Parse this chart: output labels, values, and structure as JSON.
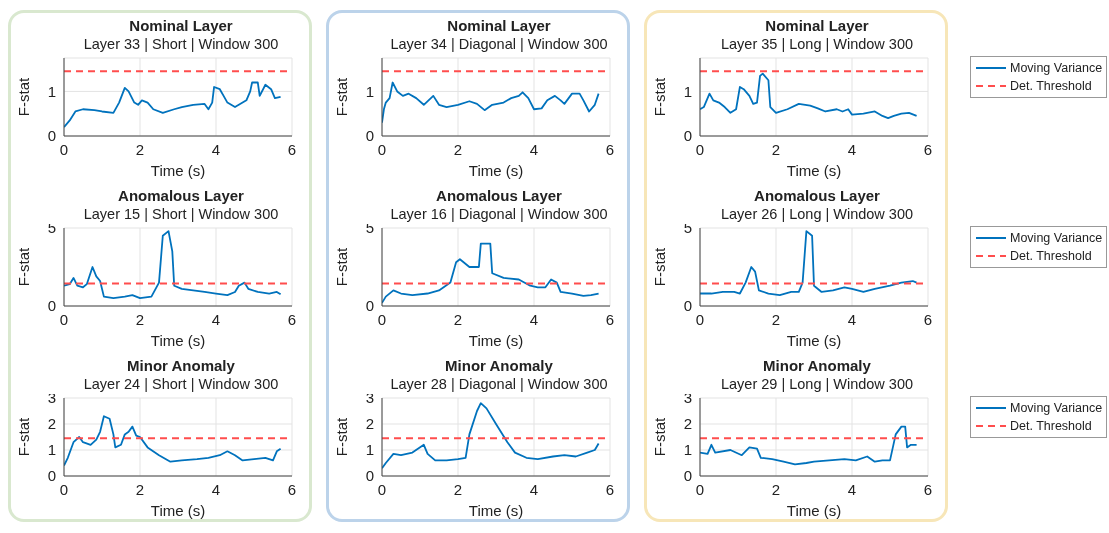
{
  "chart_data": [
    {
      "type": "line",
      "title": "Nominal Layer",
      "subtitle": "Layer 33 | Short | Window 300",
      "xlabel": "Time (s)",
      "ylabel": "F-stat",
      "xlim": [
        0,
        6
      ],
      "xticks": [
        0,
        2,
        4,
        6
      ],
      "ylim": [
        0,
        1.75
      ],
      "yticks": [
        0,
        1
      ],
      "grid": true,
      "legend": false,
      "series": [
        {
          "color": "#0072bd",
          "x": [
            0,
            0.15,
            0.3,
            0.5,
            0.8,
            1.0,
            1.3,
            1.45,
            1.6,
            1.7,
            1.85,
            1.95,
            2.05,
            2.2,
            2.35,
            2.6,
            2.9,
            3.1,
            3.4,
            3.7,
            3.8,
            3.9,
            3.95,
            4.1,
            4.2,
            4.3,
            4.5,
            4.7,
            4.8,
            4.9,
            4.95,
            5.1,
            5.15,
            5.3,
            5.45,
            5.55,
            5.7
          ],
          "values": [
            0.2,
            0.35,
            0.55,
            0.6,
            0.58,
            0.55,
            0.52,
            0.75,
            1.08,
            1.0,
            0.75,
            0.7,
            0.8,
            0.75,
            0.6,
            0.52,
            0.6,
            0.65,
            0.7,
            0.72,
            0.6,
            0.75,
            1.1,
            1.05,
            0.9,
            0.75,
            0.65,
            0.75,
            0.8,
            1.0,
            1.2,
            1.2,
            0.9,
            1.15,
            1.05,
            0.85,
            0.88
          ]
        },
        {
          "color": "#ff4d4d",
          "line_style": "dashed",
          "x": [
            0,
            6
          ],
          "values": [
            1.45,
            1.45
          ]
        }
      ]
    },
    {
      "type": "line",
      "title": "Nominal Layer",
      "subtitle": "Layer 34 | Diagonal | Window 300",
      "xlabel": "Time (s)",
      "ylabel": "F-stat",
      "xlim": [
        0,
        6
      ],
      "xticks": [
        0,
        2,
        4,
        6
      ],
      "ylim": [
        0,
        1.75
      ],
      "yticks": [
        0,
        1
      ],
      "grid": true,
      "legend": false,
      "series": [
        {
          "color": "#0072bd",
          "x": [
            0,
            0.05,
            0.1,
            0.2,
            0.28,
            0.4,
            0.55,
            0.7,
            0.9,
            1.1,
            1.35,
            1.5,
            1.7,
            2.0,
            2.3,
            2.5,
            2.7,
            2.9,
            3.2,
            3.4,
            3.6,
            3.7,
            3.85,
            4.0,
            4.2,
            4.35,
            4.55,
            4.7,
            4.8,
            5.0,
            5.2,
            5.3,
            5.45,
            5.6,
            5.7
          ],
          "values": [
            0.3,
            0.6,
            0.75,
            0.85,
            1.2,
            1.0,
            0.9,
            0.95,
            0.85,
            0.7,
            0.9,
            0.7,
            0.65,
            0.7,
            0.78,
            0.72,
            0.58,
            0.7,
            0.75,
            0.85,
            0.9,
            0.98,
            0.85,
            0.6,
            0.62,
            0.8,
            0.9,
            0.8,
            0.72,
            0.95,
            0.95,
            0.8,
            0.55,
            0.7,
            0.95
          ]
        },
        {
          "color": "#ff4d4d",
          "line_style": "dashed",
          "x": [
            0,
            6
          ],
          "values": [
            1.45,
            1.45
          ]
        }
      ]
    },
    {
      "type": "line",
      "title": "Nominal Layer",
      "subtitle": "Layer 35 | Long | Window 300",
      "xlabel": "Time (s)",
      "ylabel": "F-stat",
      "xlim": [
        0,
        6
      ],
      "xticks": [
        0,
        2,
        4,
        6
      ],
      "ylim": [
        0,
        1.75
      ],
      "yticks": [
        0,
        1
      ],
      "grid": true,
      "legend": "right",
      "series": [
        {
          "name": "Moving Variance",
          "color": "#0072bd",
          "x": [
            0,
            0.1,
            0.25,
            0.35,
            0.5,
            0.65,
            0.8,
            0.95,
            1.05,
            1.15,
            1.3,
            1.4,
            1.5,
            1.58,
            1.65,
            1.8,
            1.85,
            2.0,
            2.3,
            2.6,
            2.9,
            3.1,
            3.3,
            3.6,
            3.75,
            3.9,
            4.0,
            4.3,
            4.6,
            4.8,
            4.95,
            5.1,
            5.3,
            5.5,
            5.7
          ],
          "values": [
            0.6,
            0.65,
            0.95,
            0.8,
            0.75,
            0.65,
            0.52,
            0.6,
            1.1,
            1.05,
            0.9,
            0.72,
            0.75,
            1.35,
            1.4,
            1.25,
            0.65,
            0.52,
            0.6,
            0.72,
            0.68,
            0.62,
            0.55,
            0.6,
            0.55,
            0.6,
            0.48,
            0.5,
            0.55,
            0.45,
            0.4,
            0.45,
            0.5,
            0.52,
            0.45
          ]
        },
        {
          "name": "Det. Threshold",
          "color": "#ff4d4d",
          "line_style": "dashed",
          "x": [
            0,
            6
          ],
          "values": [
            1.45,
            1.45
          ]
        }
      ]
    },
    {
      "type": "line",
      "title": "Anomalous Layer",
      "subtitle": "Layer 15 | Short | Window 300",
      "xlabel": "Time (s)",
      "ylabel": "F-stat",
      "xlim": [
        0,
        6
      ],
      "xticks": [
        0,
        2,
        4,
        6
      ],
      "ylim": [
        0,
        5
      ],
      "yticks": [
        0,
        5
      ],
      "grid": true,
      "legend": false,
      "series": [
        {
          "color": "#0072bd",
          "x": [
            0,
            0.15,
            0.25,
            0.35,
            0.5,
            0.6,
            0.75,
            0.85,
            0.95,
            1.05,
            1.3,
            1.6,
            1.8,
            2.0,
            2.3,
            2.5,
            2.6,
            2.75,
            2.85,
            2.9,
            3.1,
            3.4,
            3.7,
            4.0,
            4.3,
            4.5,
            4.6,
            4.75,
            4.85,
            5.1,
            5.4,
            5.6,
            5.7
          ],
          "values": [
            1.3,
            1.4,
            1.8,
            1.3,
            1.2,
            1.4,
            2.5,
            1.9,
            1.6,
            0.6,
            0.5,
            0.6,
            0.7,
            0.5,
            0.6,
            1.5,
            4.5,
            4.8,
            3.5,
            1.3,
            1.1,
            1.0,
            0.9,
            0.8,
            0.7,
            0.9,
            1.3,
            1.5,
            1.1,
            0.9,
            0.8,
            0.9,
            0.75
          ]
        },
        {
          "color": "#ff4d4d",
          "line_style": "dashed",
          "x": [
            0,
            6
          ],
          "values": [
            1.45,
            1.45
          ]
        }
      ]
    },
    {
      "type": "line",
      "title": "Anomalous Layer",
      "subtitle": "Layer 16 | Diagonal | Window 300",
      "xlabel": "Time (s)",
      "ylabel": "F-stat",
      "xlim": [
        0,
        6
      ],
      "xticks": [
        0,
        2,
        4,
        6
      ],
      "ylim": [
        0,
        5
      ],
      "yticks": [
        0,
        5
      ],
      "grid": true,
      "legend": false,
      "series": [
        {
          "color": "#0072bd",
          "x": [
            0,
            0.1,
            0.3,
            0.5,
            0.8,
            1.2,
            1.5,
            1.8,
            1.95,
            2.05,
            2.3,
            2.55,
            2.6,
            2.85,
            2.9,
            3.2,
            3.6,
            3.9,
            4.1,
            4.3,
            4.45,
            4.6,
            4.7,
            5.0,
            5.3,
            5.5,
            5.7
          ],
          "values": [
            0.2,
            0.6,
            1.0,
            0.8,
            0.7,
            0.8,
            1.0,
            1.5,
            2.8,
            3.0,
            2.5,
            2.5,
            4.0,
            4.0,
            2.1,
            1.8,
            1.7,
            1.3,
            1.2,
            1.2,
            1.7,
            1.5,
            0.9,
            0.8,
            0.65,
            0.7,
            0.8
          ]
        },
        {
          "color": "#ff4d4d",
          "line_style": "dashed",
          "x": [
            0,
            6
          ],
          "values": [
            1.45,
            1.45
          ]
        }
      ]
    },
    {
      "type": "line",
      "title": "Anomalous Layer",
      "subtitle": "Layer 26 | Long | Window 300",
      "xlabel": "Time (s)",
      "ylabel": "F-stat",
      "xlim": [
        0,
        6
      ],
      "xticks": [
        0,
        2,
        4,
        6
      ],
      "ylim": [
        0,
        5
      ],
      "yticks": [
        0,
        5
      ],
      "grid": true,
      "legend": "right",
      "series": [
        {
          "name": "Moving Variance",
          "color": "#0072bd",
          "x": [
            0,
            0.3,
            0.6,
            0.9,
            1.05,
            1.2,
            1.35,
            1.45,
            1.55,
            1.8,
            2.1,
            2.4,
            2.6,
            2.7,
            2.8,
            2.95,
            3.0,
            3.2,
            3.5,
            3.8,
            4.0,
            4.3,
            4.6,
            5.0,
            5.3,
            5.6,
            5.7
          ],
          "values": [
            0.8,
            0.8,
            0.9,
            0.9,
            0.8,
            1.5,
            2.5,
            2.2,
            1.0,
            0.8,
            0.7,
            0.9,
            0.9,
            1.5,
            4.8,
            4.5,
            1.3,
            0.9,
            1.0,
            1.2,
            1.1,
            0.9,
            1.1,
            1.3,
            1.5,
            1.6,
            1.5
          ]
        },
        {
          "name": "Det. Threshold",
          "color": "#ff4d4d",
          "line_style": "dashed",
          "x": [
            0,
            6
          ],
          "values": [
            1.45,
            1.45
          ]
        }
      ]
    },
    {
      "type": "line",
      "title": "Minor Anomaly",
      "subtitle": "Layer 24 | Short | Window 300",
      "xlabel": "Time (s)",
      "ylabel": "F-stat",
      "xlim": [
        0,
        6
      ],
      "xticks": [
        0,
        2,
        4,
        6
      ],
      "ylim": [
        0,
        3
      ],
      "yticks": [
        0,
        1,
        2,
        3
      ],
      "grid": true,
      "legend": false,
      "series": [
        {
          "color": "#0072bd",
          "x": [
            0,
            0.1,
            0.25,
            0.4,
            0.5,
            0.7,
            0.85,
            0.95,
            1.05,
            1.2,
            1.3,
            1.35,
            1.5,
            1.6,
            1.7,
            1.8,
            1.9,
            2.0,
            2.2,
            2.5,
            2.8,
            3.1,
            3.5,
            3.8,
            4.1,
            4.3,
            4.5,
            4.7,
            5.0,
            5.3,
            5.5,
            5.6,
            5.7
          ],
          "values": [
            0.4,
            0.7,
            1.3,
            1.5,
            1.3,
            1.2,
            1.4,
            1.7,
            2.3,
            2.2,
            1.6,
            1.1,
            1.2,
            1.6,
            1.7,
            1.9,
            1.55,
            1.5,
            1.1,
            0.8,
            0.55,
            0.6,
            0.65,
            0.7,
            0.8,
            0.95,
            0.8,
            0.6,
            0.65,
            0.7,
            0.6,
            0.95,
            1.05
          ]
        },
        {
          "color": "#ff4d4d",
          "line_style": "dashed",
          "x": [
            0,
            6
          ],
          "values": [
            1.45,
            1.45
          ]
        }
      ]
    },
    {
      "type": "line",
      "title": "Minor Anomaly",
      "subtitle": "Layer 28 | Diagonal | Window 300",
      "xlabel": "Time (s)",
      "ylabel": "F-stat",
      "xlim": [
        0,
        6
      ],
      "xticks": [
        0,
        2,
        4,
        6
      ],
      "ylim": [
        0,
        3
      ],
      "yticks": [
        0,
        1,
        2,
        3
      ],
      "grid": true,
      "legend": false,
      "series": [
        {
          "color": "#0072bd",
          "x": [
            0,
            0.1,
            0.3,
            0.5,
            0.8,
            1.1,
            1.2,
            1.4,
            1.7,
            2.0,
            2.2,
            2.3,
            2.5,
            2.6,
            2.75,
            3.0,
            3.3,
            3.5,
            3.8,
            4.1,
            4.5,
            4.8,
            5.1,
            5.4,
            5.6,
            5.7
          ],
          "values": [
            0.3,
            0.5,
            0.85,
            0.8,
            0.9,
            1.2,
            0.85,
            0.6,
            0.6,
            0.65,
            0.7,
            1.6,
            2.5,
            2.8,
            2.6,
            2.0,
            1.3,
            0.9,
            0.7,
            0.65,
            0.75,
            0.8,
            0.75,
            0.9,
            1.0,
            1.25
          ]
        },
        {
          "color": "#ff4d4d",
          "line_style": "dashed",
          "x": [
            0,
            6
          ],
          "values": [
            1.45,
            1.45
          ]
        }
      ]
    },
    {
      "type": "line",
      "title": "Minor Anomaly",
      "subtitle": "Layer 29 | Long | Window 300",
      "xlabel": "Time (s)",
      "ylabel": "F-stat",
      "xlim": [
        0,
        6
      ],
      "xticks": [
        0,
        2,
        4,
        6
      ],
      "ylim": [
        0,
        3
      ],
      "yticks": [
        0,
        1,
        2,
        3
      ],
      "grid": true,
      "legend": "right",
      "series": [
        {
          "name": "Moving Variance",
          "color": "#0072bd",
          "x": [
            0,
            0.2,
            0.3,
            0.4,
            0.8,
            1.1,
            1.3,
            1.5,
            1.6,
            1.9,
            2.2,
            2.5,
            2.8,
            3.0,
            3.4,
            3.8,
            4.1,
            4.4,
            4.6,
            4.8,
            5.0,
            5.15,
            5.3,
            5.4,
            5.45,
            5.55,
            5.7
          ],
          "values": [
            0.9,
            0.85,
            1.2,
            0.9,
            1.0,
            0.8,
            1.1,
            1.05,
            0.7,
            0.65,
            0.55,
            0.45,
            0.5,
            0.55,
            0.6,
            0.65,
            0.6,
            0.75,
            0.55,
            0.6,
            0.6,
            1.6,
            1.9,
            1.9,
            1.1,
            1.2,
            1.2
          ]
        },
        {
          "name": "Det. Threshold",
          "color": "#ff4d4d",
          "line_style": "dashed",
          "x": [
            0,
            6
          ],
          "values": [
            1.45,
            1.45
          ]
        }
      ]
    }
  ]
}
